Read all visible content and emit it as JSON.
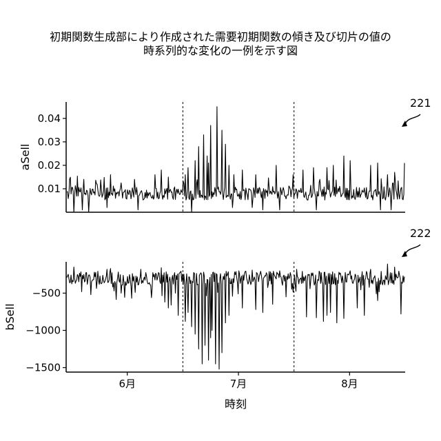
{
  "figure": {
    "title_line1": "初期関数生成部により作成された需要初期関数の傾き及び切片の値の",
    "title_line2": "時系列的な変化の一例を示す図"
  },
  "chart_data": [
    {
      "type": "line",
      "ref_number": "221",
      "ylabel": "aSell",
      "xlabel": "",
      "ylim": [
        0,
        0.047
      ],
      "yticks": [
        0.01,
        0.02,
        0.03,
        0.04
      ],
      "ytick_labels": [
        "0.01",
        "0.02",
        "0.03",
        "0.04"
      ],
      "baseline": 0.008,
      "noise_amp": 0.0028,
      "downspikes": [
        [
          0.02,
          0.0
        ],
        [
          0.045,
          0.001
        ],
        [
          0.065,
          0.0
        ],
        [
          0.12,
          0.002
        ],
        [
          0.13,
          0.002
        ],
        [
          0.21,
          0.001
        ],
        [
          0.37,
          0.0
        ],
        [
          0.49,
          0.002
        ],
        [
          0.55,
          0.002
        ],
        [
          0.58,
          0.001
        ],
        [
          0.63,
          0.001
        ],
        [
          0.74,
          0.001
        ],
        [
          0.93,
          0.001
        ],
        [
          0.96,
          0.001
        ]
      ],
      "upspikes": [
        [
          0.05,
          0.014
        ],
        [
          0.13,
          0.016
        ],
        [
          0.2,
          0.014
        ],
        [
          0.26,
          0.016
        ],
        [
          0.28,
          0.018
        ],
        [
          0.3,
          0.015
        ],
        [
          0.35,
          0.016
        ],
        [
          0.36,
          0.019
        ],
        [
          0.38,
          0.022
        ],
        [
          0.39,
          0.028
        ],
        [
          0.405,
          0.033
        ],
        [
          0.415,
          0.024
        ],
        [
          0.42,
          0.021
        ],
        [
          0.425,
          0.037
        ],
        [
          0.445,
          0.045
        ],
        [
          0.46,
          0.035
        ],
        [
          0.47,
          0.029
        ],
        [
          0.48,
          0.02
        ],
        [
          0.495,
          0.016
        ],
        [
          0.52,
          0.018
        ],
        [
          0.56,
          0.016
        ],
        [
          0.62,
          0.02
        ],
        [
          0.67,
          0.016
        ],
        [
          0.7,
          0.018
        ],
        [
          0.73,
          0.019
        ],
        [
          0.77,
          0.019
        ],
        [
          0.79,
          0.02
        ],
        [
          0.82,
          0.024
        ],
        [
          0.84,
          0.022
        ],
        [
          0.9,
          0.02
        ],
        [
          0.92,
          0.021
        ],
        [
          0.95,
          0.016
        ],
        [
          0.97,
          0.017
        ],
        [
          0.999,
          0.021
        ]
      ]
    },
    {
      "type": "line",
      "ref_number": "222",
      "ylabel": "bSell",
      "xlabel": "時刻",
      "ylim": [
        -1560,
        -80
      ],
      "yticks": [
        -1500,
        -1000,
        -500
      ],
      "ytick_labels": [
        "−1500",
        "−1000",
        "−500"
      ],
      "baseline": -300,
      "noise_amp": 95,
      "downspikes": [
        [
          0.07,
          -520
        ],
        [
          0.14,
          -470
        ],
        [
          0.16,
          -500
        ],
        [
          0.25,
          -560
        ],
        [
          0.29,
          -620
        ],
        [
          0.3,
          -700
        ],
        [
          0.31,
          -660
        ],
        [
          0.33,
          -800
        ],
        [
          0.35,
          -880
        ],
        [
          0.36,
          -760
        ],
        [
          0.37,
          -950
        ],
        [
          0.38,
          -1050
        ],
        [
          0.39,
          -1250
        ],
        [
          0.4,
          -1450
        ],
        [
          0.41,
          -1200
        ],
        [
          0.42,
          -1400
        ],
        [
          0.425,
          -1100
        ],
        [
          0.43,
          -1000
        ],
        [
          0.44,
          -1450
        ],
        [
          0.45,
          -1520
        ],
        [
          0.46,
          -1300
        ],
        [
          0.47,
          -900
        ],
        [
          0.48,
          -800
        ],
        [
          0.52,
          -700
        ],
        [
          0.56,
          -720
        ],
        [
          0.58,
          -760
        ],
        [
          0.61,
          -650
        ],
        [
          0.65,
          -550
        ],
        [
          0.68,
          -820
        ],
        [
          0.71,
          -820
        ],
        [
          0.74,
          -830
        ],
        [
          0.76,
          -880
        ],
        [
          0.77,
          -800
        ],
        [
          0.78,
          -760
        ],
        [
          0.8,
          -900
        ],
        [
          0.82,
          -840
        ],
        [
          0.84,
          -780
        ],
        [
          0.86,
          -700
        ],
        [
          0.88,
          -800
        ],
        [
          0.9,
          -650
        ],
        [
          0.92,
          -600
        ],
        [
          0.95,
          -550
        ],
        [
          0.97,
          -500
        ],
        [
          0.99,
          -780
        ]
      ],
      "upspikes": [
        [
          0.02,
          -150
        ],
        [
          0.12,
          -180
        ],
        [
          0.13,
          -170
        ],
        [
          0.22,
          -180
        ],
        [
          0.28,
          -160
        ],
        [
          0.5,
          -210
        ],
        [
          0.51,
          -200
        ],
        [
          0.55,
          -190
        ],
        [
          0.63,
          -200
        ],
        [
          0.68,
          -180
        ],
        [
          0.84,
          -200
        ],
        [
          0.9,
          -180
        ],
        [
          0.95,
          -110
        ],
        [
          0.97,
          -150
        ]
      ]
    }
  ],
  "shared_x": {
    "range_months": [
      5.45,
      8.5
    ],
    "ticks": [
      6,
      7,
      8
    ],
    "tick_labels": [
      "6月",
      "7月",
      "8月"
    ],
    "markers": [
      6.5,
      7.5
    ],
    "label": "時刻"
  }
}
